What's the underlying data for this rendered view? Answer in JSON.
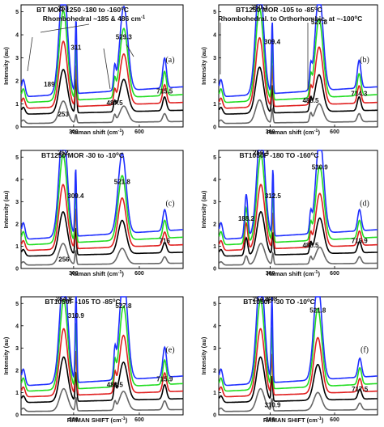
{
  "chart_data": [
    {
      "type": "line",
      "panel_label": "(a)",
      "title": "BT MOR 1250  -180 to -160",
      "title_sup": "o",
      "title_end": "C",
      "annotation": "Rhombohedral ~185 & 486 cm",
      "annotation_sup": "-1",
      "xlabel": "Raman shift (cm",
      "xlabel_sup": "-1",
      "xlabel_end": ")",
      "ylabel": "Intensity (au)",
      "xlim": [
        60,
        800
      ],
      "ylim": [
        0,
        5.3
      ],
      "yticks": [
        "0",
        "1",
        "2",
        "3",
        "4",
        "5"
      ],
      "xticks": [
        "300",
        "600"
      ],
      "series_colors": [
        "#666666",
        "#000000",
        "#e02020",
        "#22dd22",
        "#2030ff"
      ],
      "peaks": [
        {
          "x": 253,
          "h": [
            0.95,
            1.9,
            2.85,
            3.9,
            4.9
          ]
        },
        {
          "x": 311,
          "h": [
            0.35,
            1.5,
            1.8,
            2.3,
            3.2
          ]
        },
        {
          "x": 487.5,
          "h": [
            0.3,
            0.4,
            0.55,
            0.7,
            0.9
          ]
        },
        {
          "x": 529.3,
          "h": [
            0.7,
            1.4,
            2.2,
            3.0,
            3.65
          ]
        },
        {
          "x": 715.5,
          "h": [
            0.35,
            0.6,
            0.8,
            1.05,
            1.3
          ]
        }
      ],
      "peak_labels": [
        {
          "x": 253,
          "y": 5.05,
          "text": "253"
        },
        {
          "x": 253,
          "y": 0.45,
          "text": "253"
        },
        {
          "x": 311,
          "y": 3.35,
          "text": "311"
        },
        {
          "x": 529.3,
          "y": 3.8,
          "text": "529.3"
        },
        {
          "x": 487.5,
          "y": 0.95,
          "text": "487.5"
        },
        {
          "x": 715.5,
          "y": 1.45,
          "text": "715.5"
        },
        {
          "x": 189,
          "y": 1.75,
          "text": "189"
        }
      ]
    },
    {
      "type": "line",
      "panel_label": "(b)",
      "title": "BT1250 MOR -105 to -85",
      "title_sup": "o",
      "title_end": "C",
      "annotation": "Rhombohedral. to Orthorhombic. at ~-100",
      "annotation_sup": "o",
      "annotation_end": "C",
      "xlabel": "Raman shift (cm",
      "xlabel_sup": "-1",
      "xlabel_end": ")",
      "ylabel": "Intensity (au)",
      "xlim": [
        60,
        800
      ],
      "ylim": [
        0,
        5.3
      ],
      "yticks": [
        "0",
        "1",
        "2",
        "3",
        "4",
        "5"
      ],
      "xticks": [
        "300",
        "600"
      ],
      "series_colors": [
        "#666666",
        "#000000",
        "#e02020",
        "#22dd22",
        "#2030ff"
      ],
      "peaks": [
        {
          "x": 250.3,
          "h": [
            1.0,
            2.0,
            3.0,
            4.0,
            4.95
          ]
        },
        {
          "x": 309.4,
          "h": [
            0.6,
            1.2,
            1.8,
            2.4,
            3.1
          ]
        },
        {
          "x": 488.5,
          "h": [
            0.35,
            0.5,
            0.6,
            0.75,
            0.85
          ]
        },
        {
          "x": 527.8,
          "h": [
            0.8,
            1.6,
            2.5,
            3.4,
            4.2
          ]
        },
        {
          "x": 714.3,
          "h": [
            0.35,
            0.6,
            0.75,
            0.95,
            1.2
          ]
        }
      ],
      "peak_labels": [
        {
          "x": 250.3,
          "y": 5.1,
          "text": "250.3"
        },
        {
          "x": 309.4,
          "y": 3.6,
          "text": "309.4"
        },
        {
          "x": 527.8,
          "y": 4.45,
          "text": "527.8"
        },
        {
          "x": 488.5,
          "y": 1.05,
          "text": "488.5"
        },
        {
          "x": 714.3,
          "y": 1.35,
          "text": "714.3"
        }
      ]
    },
    {
      "type": "line",
      "panel_label": "(c)",
      "title": "BT1250 MOR -30 to -10",
      "title_sup": "o",
      "title_end": "C",
      "annotation": "",
      "xlabel": "Raman shift (cm",
      "xlabel_sup": "-1",
      "xlabel_end": ")",
      "ylabel": "Intensity (au)",
      "xlim": [
        60,
        800
      ],
      "ylim": [
        0,
        5.3
      ],
      "yticks": [
        "0",
        "1",
        "2",
        "3",
        "4",
        "5"
      ],
      "xticks": [
        "300",
        "600"
      ],
      "series_colors": [
        "#666666",
        "#000000",
        "#e02020",
        "#22dd22",
        "#2030ff"
      ],
      "peaks": [
        {
          "x": 252,
          "h": [
            0.95,
            1.95,
            2.9,
            3.95,
            4.95
          ]
        },
        {
          "x": 309.4,
          "h": [
            0.6,
            1.2,
            1.8,
            2.5,
            3.0
          ]
        },
        {
          "x": 521.8,
          "h": [
            0.7,
            1.5,
            2.2,
            2.9,
            3.6
          ]
        },
        {
          "x": 716,
          "h": [
            0.3,
            0.45,
            0.6,
            0.8,
            0.95
          ]
        }
      ],
      "peak_labels": [
        {
          "x": 252,
          "y": 5.1,
          "text": "252"
        },
        {
          "x": 309.4,
          "y": 3.15,
          "text": "309.4"
        },
        {
          "x": 521.8,
          "y": 3.8,
          "text": "521.8"
        },
        {
          "x": 716,
          "y": 1.15,
          "text": "716"
        },
        {
          "x": 256,
          "y": 0.3,
          "text": "256"
        }
      ]
    },
    {
      "type": "line",
      "panel_label": "(d)",
      "title": "BT1050F -180 TO -160",
      "title_sup": "o",
      "title_end": "C",
      "annotation": "",
      "xlabel": "Raman shift (cm",
      "xlabel_sup": "-1",
      "xlabel_end": ")",
      "ylabel": "Intensity (au)",
      "xlim": [
        60,
        800
      ],
      "ylim": [
        0,
        5.3
      ],
      "yticks": [
        "0",
        "1",
        "2",
        "3",
        "4",
        "5"
      ],
      "xticks": [
        "300",
        "600"
      ],
      "series_colors": [
        "#666666",
        "#000000",
        "#e02020",
        "#22dd22",
        "#2030ff"
      ],
      "peaks": [
        {
          "x": 256.4,
          "h": [
            0.95,
            1.95,
            2.9,
            3.95,
            4.9
          ]
        },
        {
          "x": 312.5,
          "h": [
            0.5,
            1.0,
            1.6,
            2.3,
            2.95
          ]
        },
        {
          "x": 188.2,
          "h": [
            0.4,
            0.8,
            1.2,
            1.6,
            1.95
          ]
        },
        {
          "x": 488.5,
          "h": [
            0.3,
            0.45,
            0.55,
            0.65,
            0.8
          ]
        },
        {
          "x": 530.9,
          "h": [
            0.75,
            1.6,
            2.4,
            3.3,
            4.3
          ]
        },
        {
          "x": 715.9,
          "h": [
            0.3,
            0.5,
            0.65,
            0.8,
            0.95
          ]
        }
      ],
      "peak_labels": [
        {
          "x": 256.4,
          "y": 5.1,
          "text": "256.4"
        },
        {
          "x": 312.5,
          "y": 3.15,
          "text": "312.5"
        },
        {
          "x": 188.2,
          "y": 2.15,
          "text": "188.2"
        },
        {
          "x": 530.9,
          "y": 4.45,
          "text": "530.9"
        },
        {
          "x": 488.5,
          "y": 0.95,
          "text": "488.5"
        },
        {
          "x": 715.9,
          "y": 1.15,
          "text": "715.9"
        }
      ]
    },
    {
      "type": "line",
      "panel_label": "(e)",
      "title": "BT1050F -105 TO -85",
      "title_sup": "o",
      "title_end": "C",
      "annotation": "",
      "xlabel": "RAMAN SHIFT (cm",
      "xlabel_sup": "-1",
      "xlabel_end": ")",
      "ylabel": "Intensity (au)",
      "xlim": [
        60,
        800
      ],
      "ylim": [
        0,
        5.3
      ],
      "yticks": [
        "0",
        "1",
        "2",
        "3",
        "4",
        "5"
      ],
      "xticks": [
        "300",
        "600"
      ],
      "series_colors": [
        "#666666",
        "#000000",
        "#e02020",
        "#22dd22",
        "#2030ff"
      ],
      "peaks": [
        {
          "x": 254.8,
          "h": [
            1.0,
            2.0,
            3.0,
            4.0,
            4.95
          ]
        },
        {
          "x": 310.9,
          "h": [
            0.6,
            1.3,
            2.0,
            3.0,
            4.2
          ]
        },
        {
          "x": 488.5,
          "h": [
            0.35,
            0.6,
            0.75,
            0.9,
            1.1
          ]
        },
        {
          "x": 527.8,
          "h": [
            0.85,
            1.7,
            2.6,
            3.6,
            4.65
          ]
        },
        {
          "x": 715.9,
          "h": [
            0.4,
            0.65,
            0.85,
            1.1,
            1.35
          ]
        }
      ],
      "peak_labels": [
        {
          "x": 254.8,
          "y": 5.1,
          "text": "254.8"
        },
        {
          "x": 310.9,
          "y": 4.35,
          "text": "310.9"
        },
        {
          "x": 527.8,
          "y": 4.8,
          "text": "527.8"
        },
        {
          "x": 488.5,
          "y": 1.25,
          "text": "488.5"
        },
        {
          "x": 715.9,
          "y": 1.5,
          "text": "715.9"
        }
      ]
    },
    {
      "type": "line",
      "panel_label": "(f)",
      "title": "BT1050F  -30 TO -10",
      "title_sup": "o",
      "title_end": "C",
      "annotation": "",
      "xlabel": "RAMAN SHIFT (cm",
      "xlabel_sup": "-1",
      "xlabel_end": ")",
      "ylabel": "Intensity (au)",
      "xlim": [
        60,
        800
      ],
      "ylim": [
        0,
        5.3
      ],
      "yticks": [
        "0",
        "1",
        "2",
        "3",
        "4",
        "5"
      ],
      "xticks": [
        "300",
        "600"
      ],
      "series_colors": [
        "#666666",
        "#000000",
        "#e02020",
        "#22dd22",
        "#2030ff"
      ],
      "peaks": [
        {
          "x": 254.8,
          "h": [
            1.0,
            2.0,
            3.0,
            4.0,
            4.95
          ]
        },
        {
          "x": 308,
          "h": [
            0.55,
            1.1,
            1.8,
            2.7,
            3.8
          ]
        },
        {
          "x": 521.8,
          "h": [
            0.8,
            1.6,
            2.5,
            3.5,
            4.4
          ]
        },
        {
          "x": 717.5,
          "h": [
            0.3,
            0.45,
            0.6,
            0.75,
            0.85
          ]
        }
      ],
      "peak_labels": [
        {
          "x": 254.8,
          "y": 5.1,
          "text": "254.8"
        },
        {
          "x": 308,
          "y": 5.1,
          "text": "308"
        },
        {
          "x": 521.8,
          "y": 4.6,
          "text": "521.8"
        },
        {
          "x": 717.5,
          "y": 1.05,
          "text": "717.5"
        },
        {
          "x": 310.9,
          "y": 0.35,
          "text": "310.9"
        }
      ]
    }
  ]
}
